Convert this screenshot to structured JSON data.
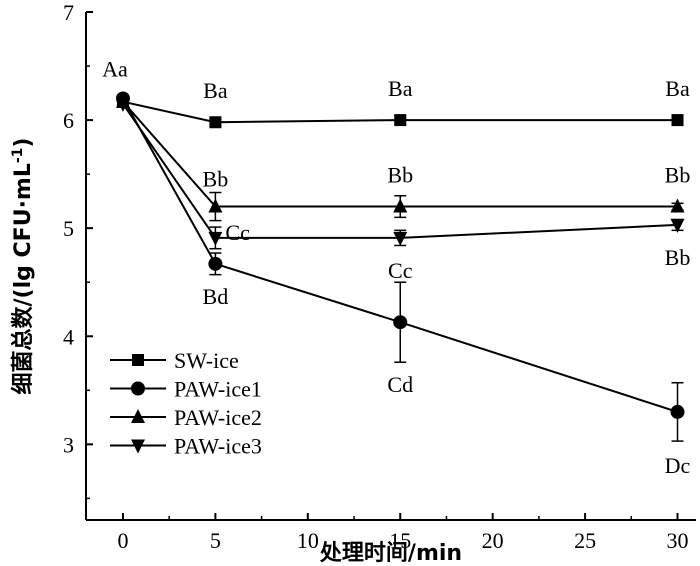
{
  "chart_data": {
    "type": "line",
    "xlabel": "处理时间/min",
    "ylabel_prefix": "细菌总数/(lg CFU·mL",
    "ylabel_sup": "-1",
    "ylabel_suffix": ")",
    "xlim": [
      -2,
      31
    ],
    "ylim": [
      2.3,
      7
    ],
    "x_ticks": [
      0,
      5,
      10,
      15,
      20,
      25,
      30
    ],
    "y_ticks": [
      3,
      4,
      5,
      6,
      7
    ],
    "legend_position": "lower-left",
    "series": [
      {
        "name": "SW-ice",
        "marker": "square",
        "x": [
          0,
          5,
          15,
          30
        ],
        "y": [
          6.17,
          5.98,
          6.0,
          6.0
        ],
        "err": [
          0.03,
          0.03,
          0.04,
          0.03
        ],
        "labels": [
          "",
          "Ba",
          "Ba",
          "Ba"
        ]
      },
      {
        "name": "PAW-ice1",
        "marker": "circle",
        "x": [
          0,
          5,
          15,
          30
        ],
        "y": [
          6.2,
          4.67,
          4.13,
          3.3
        ],
        "err": [
          0.03,
          0.1,
          0.37,
          0.27
        ],
        "labels": [
          "Aa",
          "Bd",
          "Cd",
          "Dc"
        ]
      },
      {
        "name": "PAW-ice2",
        "marker": "triangle-up",
        "x": [
          0,
          5,
          15,
          30
        ],
        "y": [
          6.17,
          5.2,
          5.2,
          5.2
        ],
        "err": [
          0.03,
          0.13,
          0.1,
          0.03
        ],
        "labels": [
          "",
          "Bb",
          "Bb",
          "Bb"
        ]
      },
      {
        "name": "PAW-ice3",
        "marker": "triangle-down",
        "x": [
          0,
          5,
          15,
          30
        ],
        "y": [
          6.15,
          4.91,
          4.91,
          5.03
        ],
        "err": [
          0.03,
          0.1,
          0.07,
          0.05
        ],
        "labels": [
          "",
          "Cc",
          "Cc",
          "Bb"
        ]
      }
    ]
  }
}
